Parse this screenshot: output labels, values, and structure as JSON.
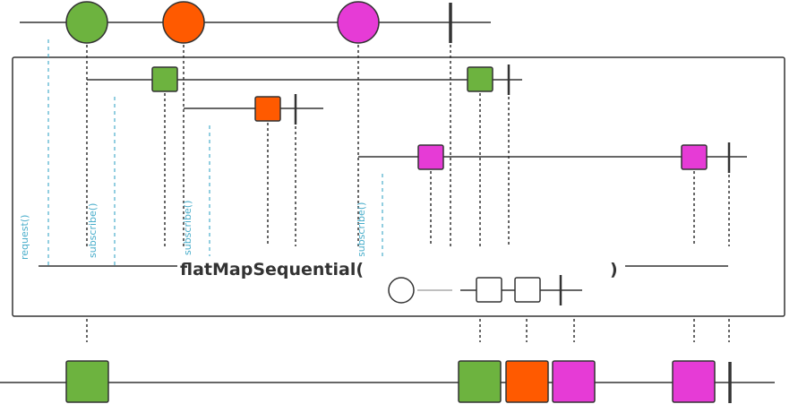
{
  "operator": {
    "name": "flatMapSequential(",
    "close": ")"
  },
  "signals": {
    "request": "request()",
    "subscribe": "subscribe()"
  },
  "colors": {
    "green": "#6db33f",
    "orange": "#ff5a00",
    "magenta": "#e63bd6",
    "line": "#333333",
    "signal": "#4aaecb",
    "gray": "#aaaaaa"
  },
  "marbles": {
    "source": [
      "green",
      "orange",
      "magenta"
    ],
    "inner_green": [
      "green",
      "green"
    ],
    "inner_orange": [
      "orange"
    ],
    "inner_magenta": [
      "magenta",
      "magenta"
    ],
    "output": [
      "green",
      "green",
      "orange",
      "magenta",
      "magenta"
    ]
  }
}
